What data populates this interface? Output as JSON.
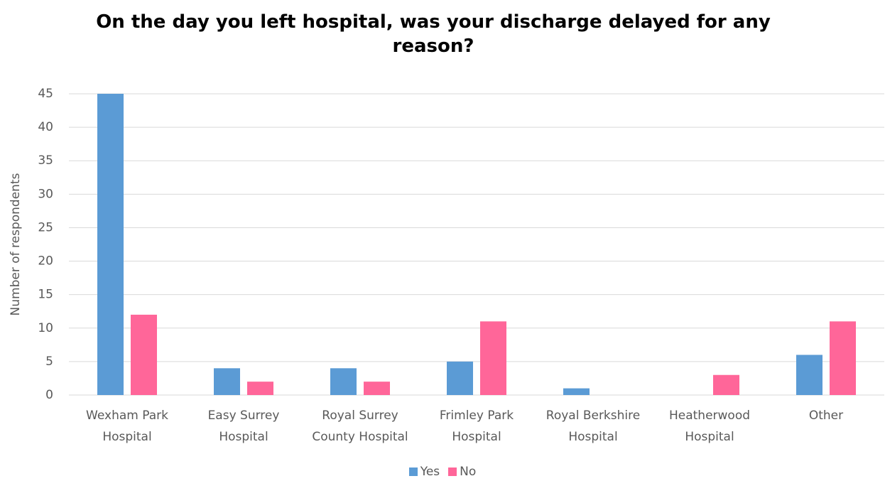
{
  "chart_data": {
    "type": "bar",
    "title": "On the day you left hospital, was your discharge delayed for any reason?",
    "y_label": "Number of respondents",
    "categories": [
      "Wexham Park Hospital",
      "Easy Surrey Hospital",
      "Royal Surrey County Hospital",
      "Frimley Park Hospital",
      "Royal Berkshire Hospital",
      "Heatherwood Hospital",
      "Other"
    ],
    "series": [
      {
        "name": "Yes",
        "color": "#5b9bd5",
        "values": [
          45,
          4,
          4,
          5,
          1,
          0,
          6
        ]
      },
      {
        "name": "No",
        "color": "#ff6699",
        "values": [
          12,
          2,
          2,
          11,
          0,
          3,
          11
        ]
      }
    ],
    "ylim": [
      0,
      45
    ],
    "yticks": [
      0,
      5,
      10,
      15,
      20,
      25,
      30,
      35,
      40,
      45
    ],
    "grid": true,
    "legend": "bottom"
  }
}
